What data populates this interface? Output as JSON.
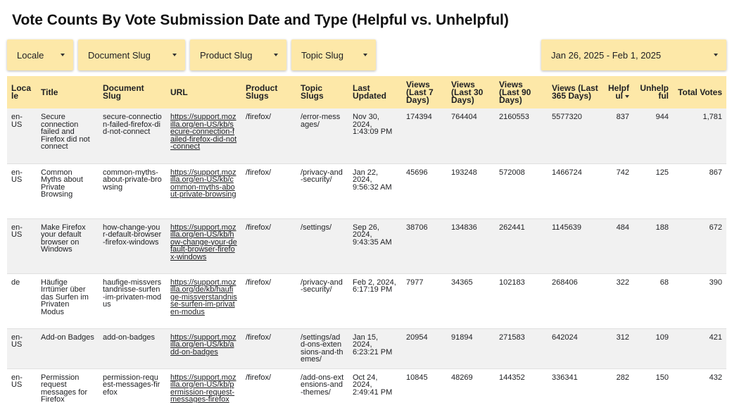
{
  "title": "Vote Counts By Vote Submission Date and Type (Helpful vs. Unhelpful)",
  "filters": {
    "locale": "Locale",
    "document_slug": "Document Slug",
    "product_slug": "Product Slug",
    "topic_slug": "Topic Slug",
    "date_range": "Jan 26, 2025 - Feb 1, 2025"
  },
  "table": {
    "headers": {
      "locale": "Locale",
      "title": "Title",
      "document_slug": "Document Slug",
      "url": "URL",
      "product_slugs": "Product Slugs",
      "topic_slugs": "Topic Slugs",
      "last_updated": "Last Updated",
      "views_7": "Views (Last 7 Days)",
      "views_30": "Views (Last 30 Days)",
      "views_90": "Views (Last 90 Days)",
      "views_365": "Views (Last 365 Days)",
      "helpful": "Helpful",
      "unhelpful": "Unhelpful",
      "total_votes": "Total Votes"
    },
    "rows": [
      {
        "locale": "en-US",
        "title": "Secure connection failed and Firefox did not connect",
        "document_slug": "secure-connection-failed-firefox-did-not-connect",
        "url": "https://support.mozilla.org/en-US/kb/secure-connection-failed-firefox-did-not-connect",
        "product_slugs": "/firefox/",
        "topic_slugs": "/error-messages/",
        "last_updated": "Nov 30, 2024, 1:43:09 PM",
        "views_7": "174394",
        "views_30": "764404",
        "views_90": "2160553",
        "views_365": "5577320",
        "helpful": "837",
        "unhelpful": "944",
        "total_votes": "1,781"
      },
      {
        "locale": "en-US",
        "title": "Common Myths about Private Browsing",
        "document_slug": "common-myths-about-private-browsing",
        "url": "https://support.mozilla.org/en-US/kb/common-myths-about-private-browsing",
        "product_slugs": "/firefox/",
        "topic_slugs": "/privacy-and-security/",
        "last_updated": "Jan 22, 2024, 9:56:32 AM",
        "views_7": "45696",
        "views_30": "193248",
        "views_90": "572008",
        "views_365": "1466724",
        "helpful": "742",
        "unhelpful": "125",
        "total_votes": "867"
      },
      {
        "locale": "en-US",
        "title": "Make Firefox your default browser on Windows",
        "document_slug": "how-change-your-default-browser-firefox-windows",
        "url": "https://support.mozilla.org/en-US/kb/how-change-your-default-browser-firefox-windows",
        "product_slugs": "/firefox/",
        "topic_slugs": "/settings/",
        "last_updated": "Sep 26, 2024, 9:43:35 AM",
        "views_7": "38706",
        "views_30": "134836",
        "views_90": "262441",
        "views_365": "1145639",
        "helpful": "484",
        "unhelpful": "188",
        "total_votes": "672"
      },
      {
        "locale": "de",
        "title": "Häufige Irrtümer über das Surfen im Privaten Modus",
        "document_slug": "haufige-missverstandnisse-surfen-im-privaten-modus",
        "url": "https://support.mozilla.org/de/kb/haufige-missverstandnisse-surfen-im-privaten-modus",
        "product_slugs": "/firefox/",
        "topic_slugs": "/privacy-and-security/",
        "last_updated": "Feb 2, 2024, 6:17:19 PM",
        "views_7": "7977",
        "views_30": "34365",
        "views_90": "102183",
        "views_365": "268406",
        "helpful": "322",
        "unhelpful": "68",
        "total_votes": "390"
      },
      {
        "locale": "en-US",
        "title": "Add-on Badges",
        "document_slug": "add-on-badges",
        "url": "https://support.mozilla.org/en-US/kb/add-on-badges",
        "product_slugs": "/firefox/",
        "topic_slugs": "/settings/add-ons-extensions-and-themes/",
        "last_updated": "Jan 15, 2024, 6:23:21 PM",
        "views_7": "20954",
        "views_30": "91894",
        "views_90": "271583",
        "views_365": "642024",
        "helpful": "312",
        "unhelpful": "109",
        "total_votes": "421"
      },
      {
        "locale": "en-US",
        "title": "Permission request messages for Firefox",
        "document_slug": "permission-request-messages-firefox",
        "url": "https://support.mozilla.org/en-US/kb/permission-request-messages-firefox",
        "product_slugs": "/firefox/",
        "topic_slugs": "/add-ons-extensions-and-themes/",
        "last_updated": "Oct 24, 2024, 2:49:41 PM",
        "views_7": "10845",
        "views_30": "48269",
        "views_90": "144352",
        "views_365": "336341",
        "helpful": "282",
        "unhelpful": "150",
        "total_votes": "432"
      }
    ]
  }
}
